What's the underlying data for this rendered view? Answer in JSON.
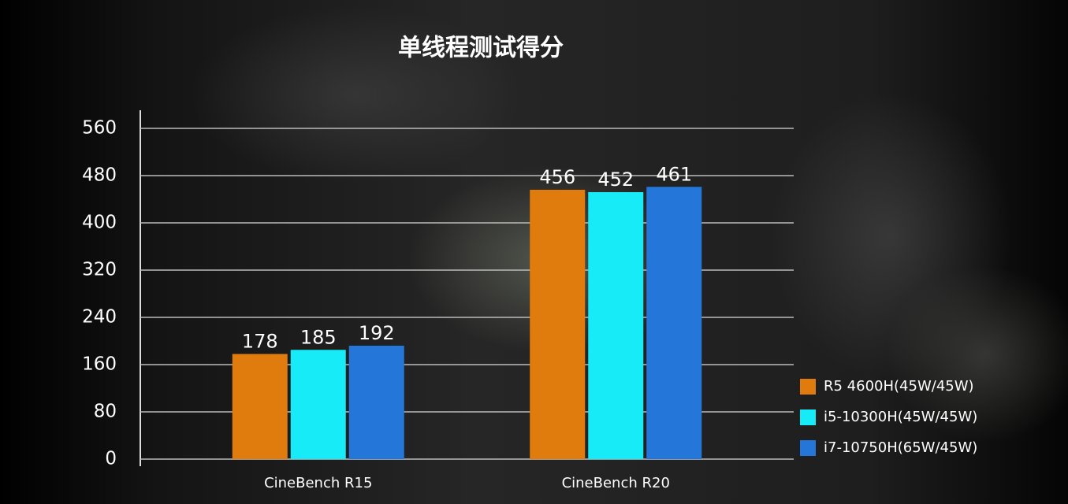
{
  "chart_data": {
    "type": "bar",
    "title": "单线程测试得分",
    "categories": [
      "CineBench R15",
      "CineBench R20"
    ],
    "series": [
      {
        "name": "R5 4600H(45W/45W)",
        "color": "#e07c0d",
        "values": [
          178,
          456
        ]
      },
      {
        "name": "i5-10300H(45W/45W)",
        "color": "#17ebf7",
        "values": [
          185,
          452
        ]
      },
      {
        "name": "i7-10750H(65W/45W)",
        "color": "#2477d8",
        "values": [
          192,
          461
        ]
      }
    ],
    "ylim": [
      0,
      560
    ],
    "yticks": [
      0,
      80,
      160,
      240,
      320,
      400,
      480,
      560
    ],
    "grid": true,
    "legend": "lower right"
  }
}
